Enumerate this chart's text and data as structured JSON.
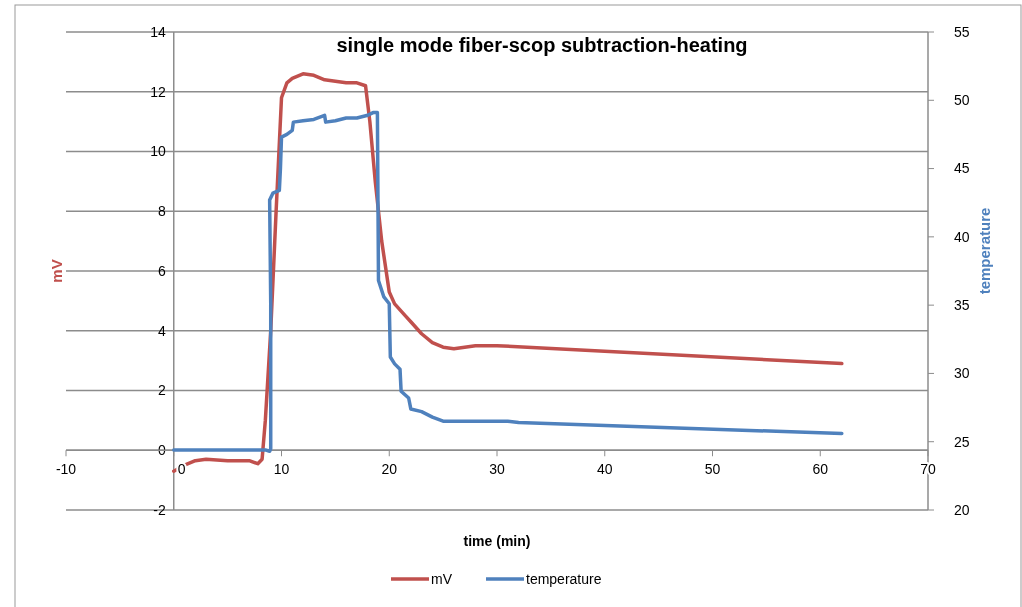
{
  "chart_data": {
    "type": "line",
    "title": "single mode fiber-scop subtraction-heating",
    "xlabel": "time (min)",
    "ylabel": "mV",
    "y2label": "temperature",
    "xlim": [
      -10,
      70
    ],
    "xticks": [
      -10,
      0,
      10,
      20,
      30,
      40,
      50,
      60,
      70
    ],
    "ylim": [
      -2,
      14
    ],
    "yticks": [
      -2,
      0,
      2,
      4,
      6,
      8,
      10,
      12,
      14
    ],
    "y2lim": [
      20,
      55
    ],
    "y2ticks": [
      20,
      25,
      30,
      35,
      40,
      45,
      50,
      55
    ],
    "grid": "y",
    "legend": "bottom",
    "marker": "none",
    "line_style": "solid",
    "series": [
      {
        "name": "mV",
        "color": "#c0504d",
        "x": [
          0,
          1,
          2,
          3,
          5,
          7,
          7.8,
          8.2,
          8.5,
          9,
          9.5,
          10,
          10.5,
          11,
          12,
          13,
          14,
          15,
          16,
          17,
          17.8,
          18.2,
          18.7,
          19.3,
          20,
          20.5,
          21.5,
          22,
          23,
          24,
          25,
          26,
          27,
          28,
          30,
          62
        ],
        "values": [
          -0.7,
          -0.5,
          -0.35,
          -0.3,
          -0.35,
          -0.35,
          -0.45,
          -0.3,
          1,
          4,
          8,
          11.8,
          12.3,
          12.45,
          12.6,
          12.55,
          12.4,
          12.35,
          12.3,
          12.3,
          12.2,
          11,
          9,
          7,
          5.3,
          4.9,
          4.5,
          4.3,
          3.9,
          3.6,
          3.45,
          3.4,
          3.45,
          3.5,
          3.5,
          2.9
        ]
      },
      {
        "name": "temperature",
        "color": "#4f81bd",
        "axis": "y2",
        "x": [
          0,
          4,
          8.5,
          8.9,
          9.0,
          9.0,
          8.9,
          9.2,
          9.8,
          9.9,
          10,
          10.5,
          11,
          11.1,
          12,
          13,
          14,
          14.1,
          15,
          16,
          17,
          18,
          18.5,
          18.9,
          19.0,
          19.5,
          20.0,
          20.1,
          20.5,
          21,
          21.1,
          21.8,
          22,
          23,
          24,
          25,
          31,
          32,
          62
        ],
        "values": [
          24.4,
          24.4,
          24.4,
          24.3,
          24.5,
          35.1,
          42.7,
          43.2,
          43.4,
          45,
          47.3,
          47.5,
          47.8,
          48.4,
          48.5,
          48.6,
          48.9,
          48.4,
          48.5,
          48.7,
          48.7,
          48.9,
          49.1,
          49.1,
          36.8,
          35.6,
          35.1,
          31.2,
          30.7,
          30.3,
          28.7,
          28.2,
          27.4,
          27.2,
          26.8,
          26.5,
          26.5,
          26.4,
          25.6
        ]
      }
    ]
  }
}
